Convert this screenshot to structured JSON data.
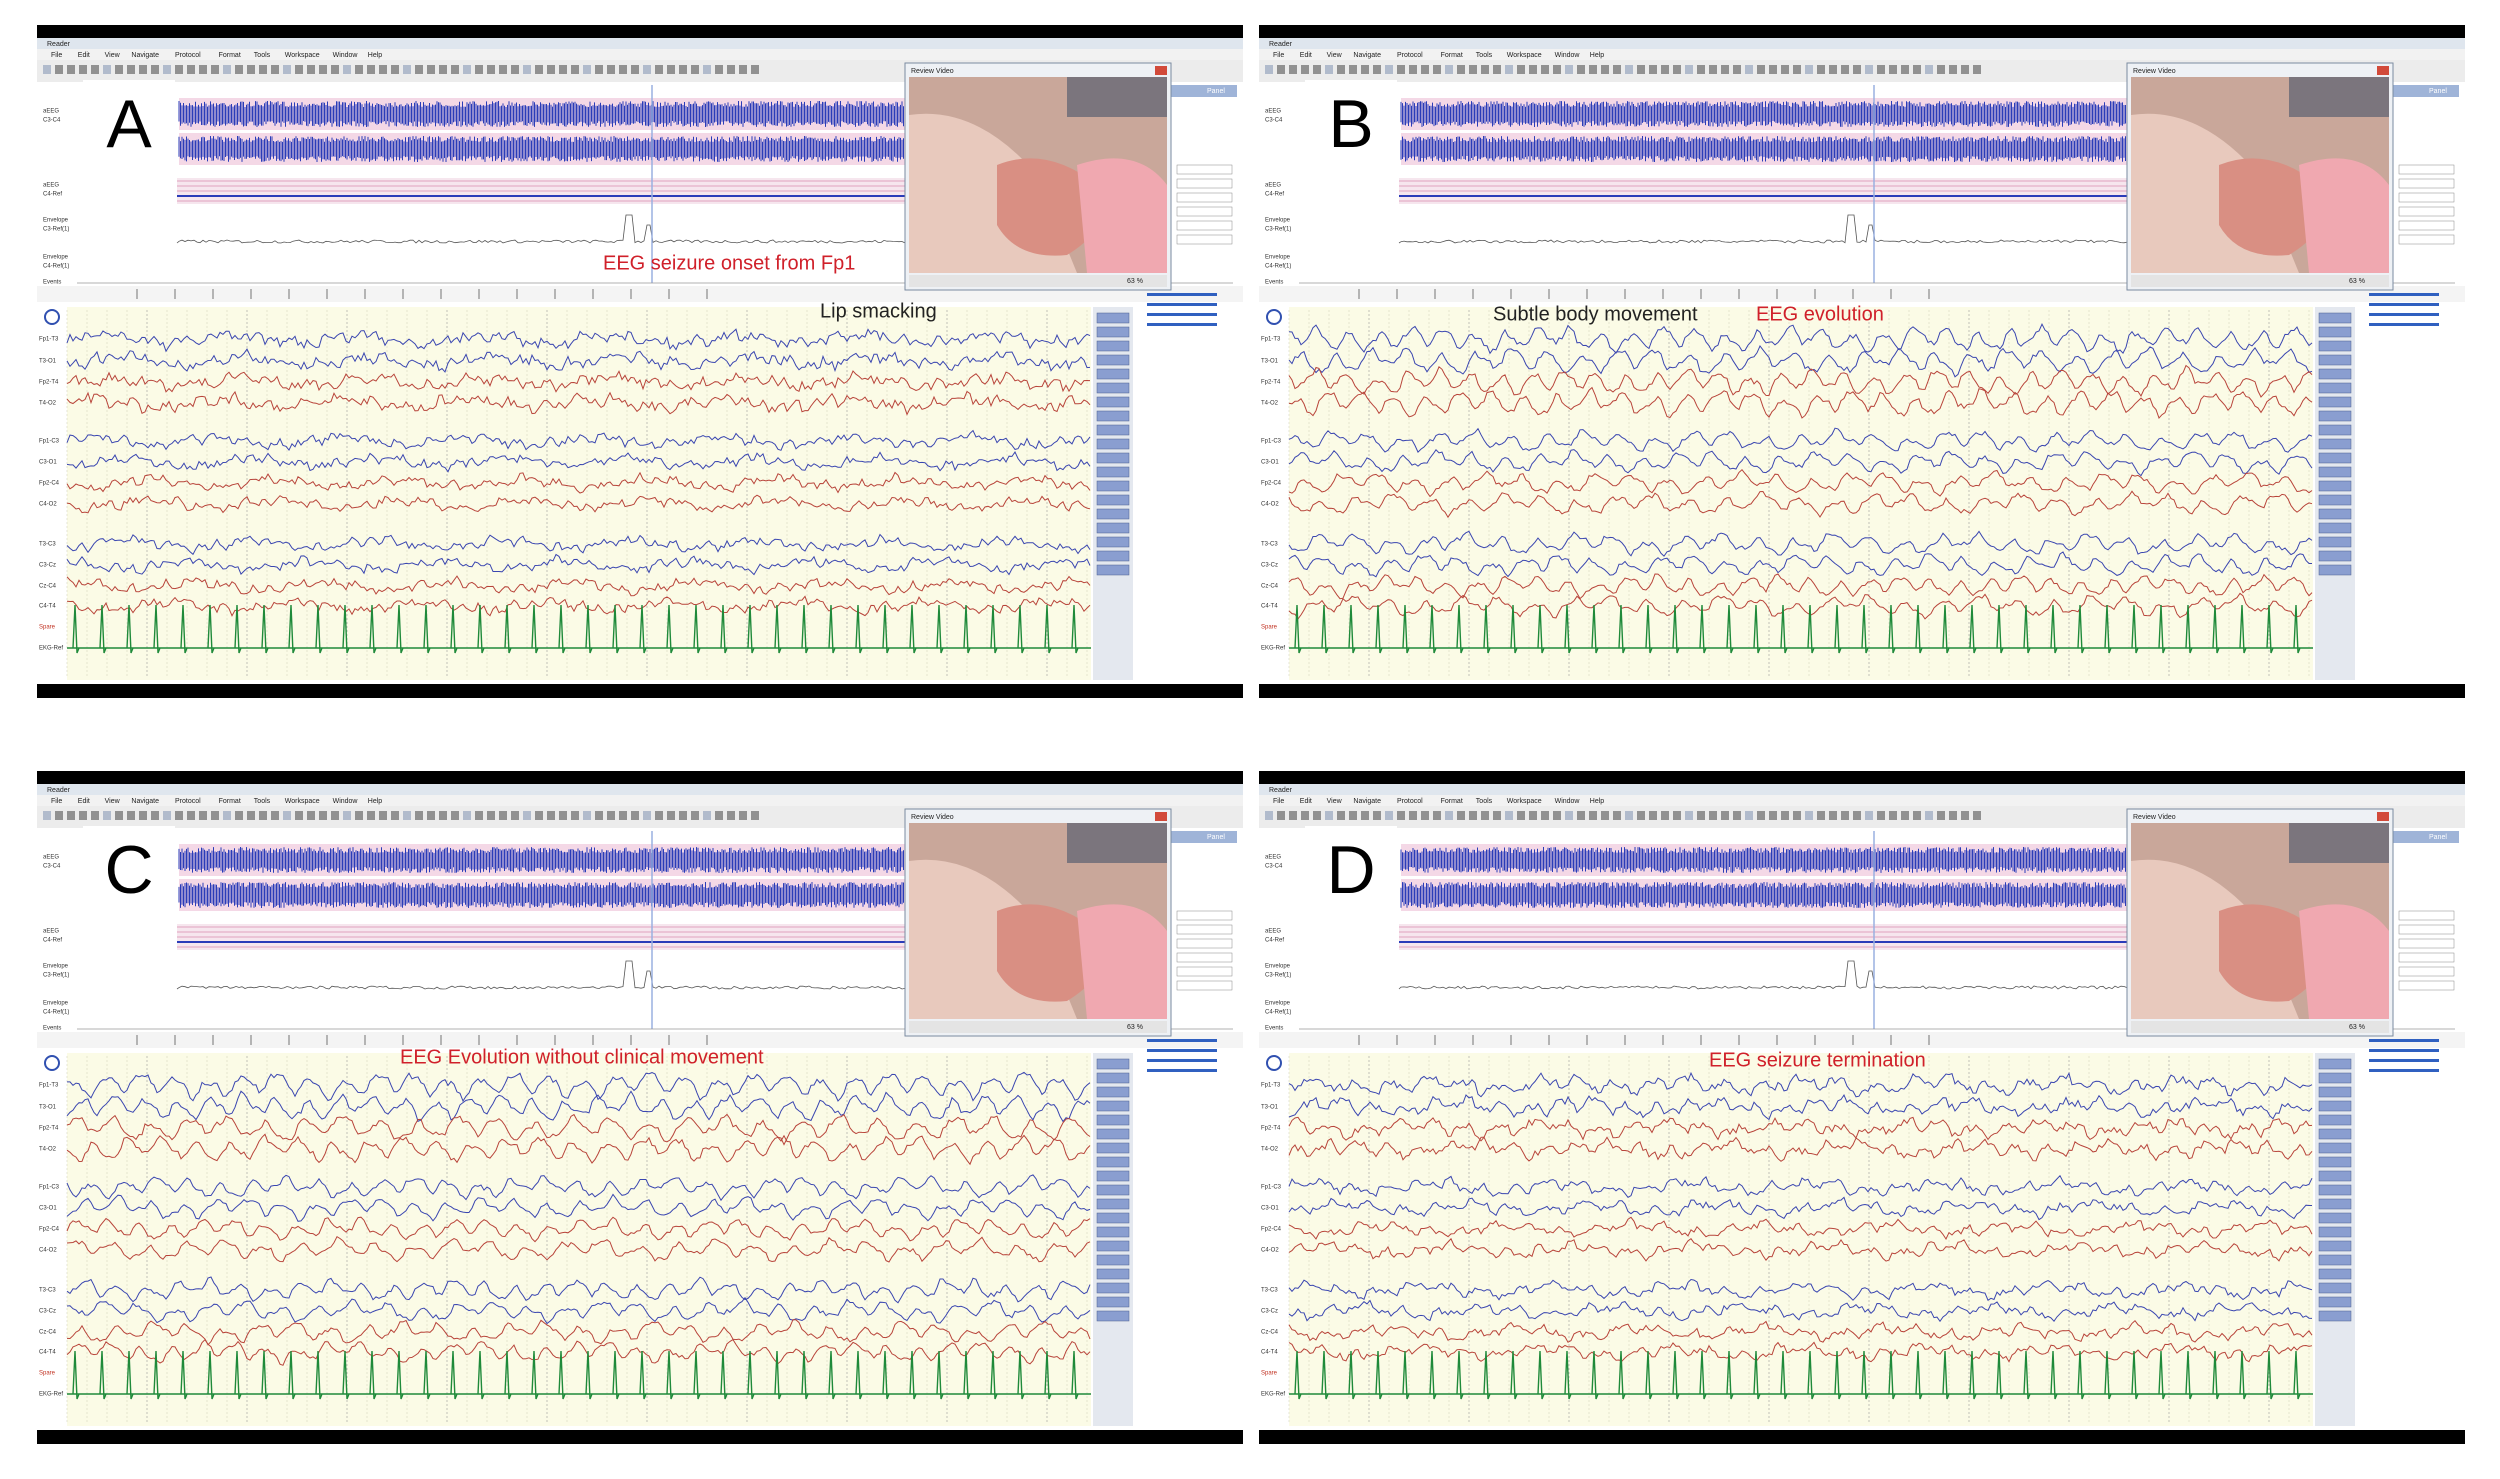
{
  "app": {
    "title": "Reader",
    "menu": [
      "File",
      "Edit",
      "View",
      "Navigate",
      "Protocol",
      "Format",
      "Tools",
      "Workspace",
      "Window",
      "Help"
    ],
    "video_title": "Review Video",
    "zoom": "63 %",
    "panel_label": "Panel",
    "trend_labels": [
      [
        "aEEG",
        "C3-C4"
      ],
      [
        "aEEG",
        "C4-Ref"
      ],
      [
        "Envelope",
        "C3-Ref(1)"
      ],
      [
        "Envelope",
        "C4-Ref(1)"
      ],
      [
        "Events"
      ]
    ],
    "channels": [
      "Fp1-T3",
      "T3-O1",
      "Fp2-T4",
      "T4-O2",
      "Fp1-C3",
      "C3-O1",
      "Fp2-C4",
      "C4-O2",
      "T3-C3",
      "C3-Cz",
      "Cz-C4",
      "C4-T4",
      "Spare",
      "EKG-Ref"
    ]
  },
  "panels": [
    {
      "letter": "A",
      "annotations": [
        {
          "text": "EEG  seizure onset from Fp1",
          "color": "#d0202a"
        },
        {
          "text": "Lip smacking",
          "color": "#222222"
        }
      ]
    },
    {
      "letter": "B",
      "annotations": [
        {
          "text": "Subtle body movement",
          "color": "#222222"
        },
        {
          "text": "EEG evolution",
          "color": "#d0202a"
        }
      ]
    },
    {
      "letter": "C",
      "annotations": [
        {
          "text": "EEG Evolution without clinical movement",
          "color": "#d0202a"
        }
      ]
    },
    {
      "letter": "D",
      "annotations": [
        {
          "text": "EEG seizure termination",
          "color": "#d0202a"
        }
      ]
    }
  ]
}
